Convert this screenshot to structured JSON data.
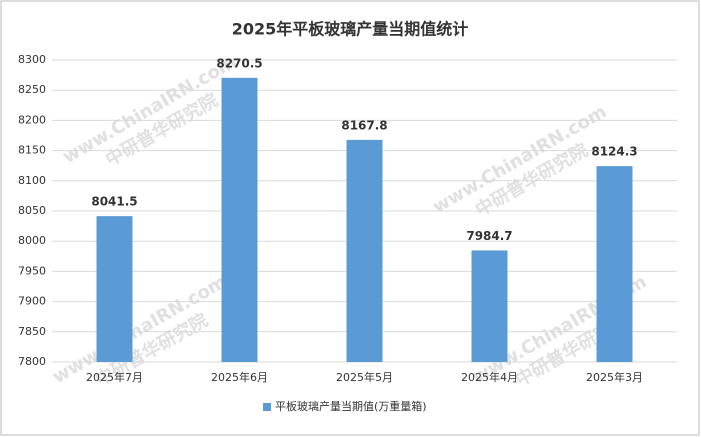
{
  "chart_data": {
    "type": "bar",
    "title": "2025年平板玻璃产量当期值统计",
    "categories": [
      "2025年7月",
      "2025年6月",
      "2025年5月",
      "2025年4月",
      "2025年3月"
    ],
    "series": [
      {
        "name": "平板玻璃产量当期值(万重量箱)",
        "color": "#5b9bd5",
        "values": [
          8041.5,
          8270.5,
          8167.8,
          7984.7,
          8124.3
        ]
      }
    ],
    "ylim": [
      7800,
      8300
    ],
    "yticks": [
      7800,
      7850,
      7900,
      7950,
      8000,
      8050,
      8100,
      8150,
      8200,
      8250,
      8300
    ],
    "grid": true,
    "legend": "bottom",
    "watermark": [
      "www.ChinaIRN.com",
      "中研普华研究院"
    ]
  }
}
